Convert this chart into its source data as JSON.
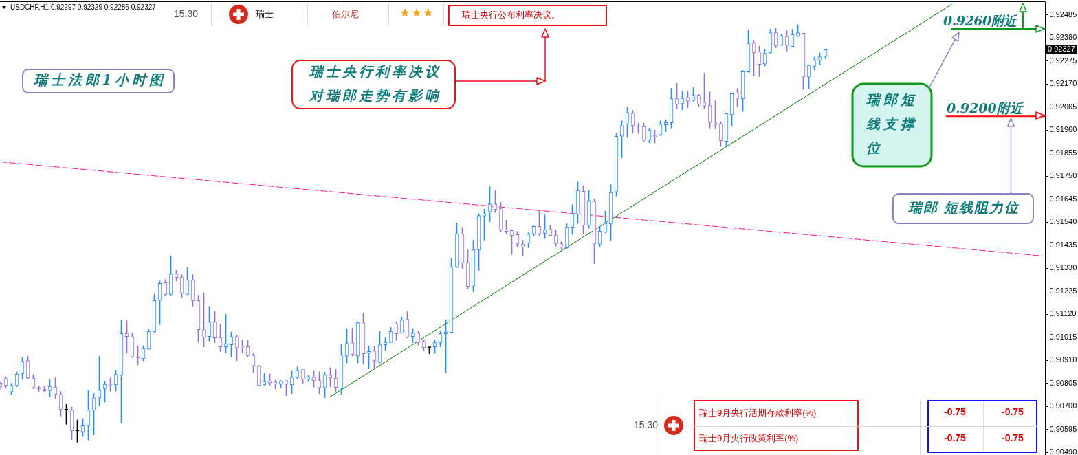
{
  "chart_data": {
    "type": "candlestick",
    "title": "USDCHF,H1 0.92297 0.92329 0.92286 0.92327",
    "categories": [
      null,
      null,
      null,
      null,
      null,
      null,
      null,
      null,
      null,
      null,
      null,
      null,
      null,
      null,
      null,
      null,
      null,
      null,
      null,
      null,
      null,
      null,
      null,
      null,
      null,
      null,
      null,
      null,
      null,
      null,
      null,
      null,
      null,
      null,
      null,
      null,
      null,
      null,
      null,
      null,
      null,
      null,
      null,
      null,
      null,
      null,
      null,
      null,
      null,
      null,
      null,
      null,
      null,
      null,
      null,
      null,
      null,
      null,
      null,
      null,
      null,
      null,
      null,
      null,
      null,
      null,
      null,
      null,
      null,
      null,
      null,
      null,
      null,
      null,
      null,
      null,
      null,
      null,
      null,
      null,
      null,
      null,
      null,
      null,
      null,
      null,
      null,
      null,
      null,
      null,
      null,
      null,
      null,
      null,
      null,
      null,
      null,
      null,
      null,
      null,
      null,
      null,
      null,
      null,
      null,
      null,
      null,
      null,
      null,
      null,
      null,
      null,
      null,
      null,
      null,
      null,
      null,
      null,
      null,
      null,
      null,
      null,
      null,
      null,
      null,
      null,
      null,
      null,
      null,
      null,
      null,
      null,
      null,
      null,
      null,
      null,
      null,
      null,
      null,
      null,
      null,
      null,
      null,
      null,
      null,
      null,
      null,
      null,
      null,
      null,
      null,
      null,
      null,
      null,
      null,
      null,
      null,
      null,
      null,
      null,
      null,
      null,
      null,
      null,
      null,
      null,
      null,
      null,
      null,
      null,
      null,
      null,
      null,
      null,
      null,
      null,
      null,
      null,
      null,
      null,
      null,
      null,
      null,
      null,
      null,
      null,
      null,
      null,
      null,
      null,
      null
    ],
    "ohlc": [
      [
        0.90806,
        0.90817,
        0.90775,
        0.90789
      ],
      [
        0.90827,
        0.90835,
        0.90785,
        0.90796
      ],
      [
        0.90766,
        0.90805,
        0.90754,
        0.90795
      ],
      [
        0.90795,
        0.90857,
        0.9079,
        0.90848
      ],
      [
        0.9085,
        0.90922,
        0.90823,
        0.90905
      ],
      [
        0.90908,
        0.90929,
        0.90826,
        0.90829
      ],
      [
        0.90829,
        0.90845,
        0.90781,
        0.90785
      ],
      [
        0.90786,
        0.90793,
        0.90768,
        0.90781
      ],
      [
        0.90779,
        0.90791,
        0.90767,
        0.9077
      ],
      [
        0.90771,
        0.90821,
        0.90743,
        0.90791
      ],
      [
        0.90788,
        0.90831,
        0.90735,
        0.90754
      ],
      [
        0.90754,
        0.90768,
        0.90655,
        0.90685
      ],
      [
        0.90685,
        0.90709,
        0.90618,
        0.90685
      ],
      [
        0.90683,
        0.90697,
        0.90548,
        0.90588
      ],
      [
        0.90588,
        0.90638,
        0.90536,
        0.90588
      ],
      [
        0.90583,
        0.90644,
        0.90562,
        0.90612
      ],
      [
        0.90612,
        0.90772,
        0.90546,
        0.90683
      ],
      [
        0.90683,
        0.90758,
        0.9057,
        0.90739
      ],
      [
        0.90738,
        0.90929,
        0.90703,
        0.90773
      ],
      [
        0.90781,
        0.90814,
        0.90719,
        0.90801
      ],
      [
        0.908,
        0.90829,
        0.90768,
        0.90797
      ],
      [
        0.90798,
        0.90864,
        0.90769,
        0.90845
      ],
      [
        0.90842,
        0.91094,
        0.90625,
        0.91032
      ],
      [
        0.91032,
        0.91091,
        0.90944,
        0.91018
      ],
      [
        0.91018,
        0.91036,
        0.90922,
        0.90926
      ],
      [
        0.90927,
        0.90976,
        0.90889,
        0.9092
      ],
      [
        0.90917,
        0.90976,
        0.90908,
        0.90964
      ],
      [
        0.90961,
        0.91051,
        0.9096,
        0.91041
      ],
      [
        0.91039,
        0.91212,
        0.91037,
        0.91182
      ],
      [
        0.91183,
        0.91272,
        0.91072,
        0.91261
      ],
      [
        0.91264,
        0.91279,
        0.91204,
        0.9121
      ],
      [
        0.9121,
        0.91387,
        0.91207,
        0.91304
      ],
      [
        0.91304,
        0.9132,
        0.91272,
        0.91288
      ],
      [
        0.91288,
        0.91301,
        0.91196,
        0.91215
      ],
      [
        0.9121,
        0.91334,
        0.91209,
        0.91276
      ],
      [
        0.91276,
        0.91301,
        0.91157,
        0.91182
      ],
      [
        0.91182,
        0.91207,
        0.90992,
        0.9105
      ],
      [
        0.9105,
        0.91217,
        0.90971,
        0.91015
      ],
      [
        0.91018,
        0.91156,
        0.90997,
        0.91084
      ],
      [
        0.91084,
        0.91133,
        0.9099,
        0.91012
      ],
      [
        0.91012,
        0.91076,
        0.9095,
        0.90971
      ],
      [
        0.90971,
        0.9112,
        0.90944,
        0.90985
      ],
      [
        0.90981,
        0.91039,
        0.90924,
        0.91018
      ],
      [
        0.91018,
        0.91024,
        0.90908,
        0.90966
      ],
      [
        0.90973,
        0.91002,
        0.90944,
        0.9097
      ],
      [
        0.90972,
        0.91002,
        0.90924,
        0.90932
      ],
      [
        0.90933,
        0.90944,
        0.90854,
        0.90884
      ],
      [
        0.90884,
        0.90887,
        0.90793,
        0.90795
      ],
      [
        0.90798,
        0.9085,
        0.90796,
        0.90814
      ],
      [
        0.90816,
        0.90848,
        0.90796,
        0.90807
      ],
      [
        0.90811,
        0.90819,
        0.90779,
        0.908
      ],
      [
        0.90801,
        0.90819,
        0.90784,
        0.90816
      ],
      [
        0.90817,
        0.90819,
        0.90748,
        0.908
      ],
      [
        0.90798,
        0.90861,
        0.90758,
        0.90833
      ],
      [
        0.90832,
        0.9088,
        0.90827,
        0.90864
      ],
      [
        0.90867,
        0.90869,
        0.90804,
        0.90823
      ],
      [
        0.90823,
        0.90843,
        0.90813,
        0.90834
      ],
      [
        0.90833,
        0.90861,
        0.90787,
        0.90817
      ],
      [
        0.90817,
        0.90858,
        0.90758,
        0.90785
      ],
      [
        0.90785,
        0.90855,
        0.90739,
        0.90843
      ],
      [
        0.90843,
        0.90876,
        0.90789,
        0.90829
      ],
      [
        0.90829,
        0.90869,
        0.90766,
        0.90787
      ],
      [
        0.90783,
        0.90984,
        0.90755,
        0.90934
      ],
      [
        0.90929,
        0.91053,
        0.90898,
        0.90987
      ],
      [
        0.9099,
        0.91057,
        0.90929,
        0.90936
      ],
      [
        0.90929,
        0.91086,
        0.90898,
        0.91081
      ],
      [
        0.91081,
        0.91123,
        0.90892,
        0.9094
      ],
      [
        0.90943,
        0.90976,
        0.90871,
        0.9095
      ],
      [
        0.90953,
        0.90973,
        0.90877,
        0.90908
      ],
      [
        0.90901,
        0.91042,
        0.90898,
        0.90981
      ],
      [
        0.90981,
        0.91013,
        0.90955,
        0.90992
      ],
      [
        0.90992,
        0.9106,
        0.9099,
        0.91041
      ],
      [
        0.91076,
        0.91086,
        0.91002,
        0.91031
      ],
      [
        0.91034,
        0.91107,
        0.91032,
        0.91094
      ],
      [
        0.91097,
        0.91133,
        0.91011,
        0.91016
      ],
      [
        0.91018,
        0.91055,
        0.9099,
        0.91034
      ],
      [
        0.91034,
        0.91044,
        0.90979,
        0.90992
      ],
      [
        0.90996,
        0.91002,
        0.90955,
        0.90968
      ],
      [
        0.90968,
        0.90971,
        0.9094,
        0.90968
      ],
      [
        0.90971,
        0.91002,
        0.90942,
        0.9099
      ],
      [
        0.90989,
        0.91044,
        0.90971,
        0.91031
      ],
      [
        0.91031,
        0.91095,
        0.90853,
        0.91039
      ],
      [
        0.91037,
        0.91374,
        0.91035,
        0.91336
      ],
      [
        0.91336,
        0.91537,
        0.91333,
        0.91487
      ],
      [
        0.91487,
        0.91516,
        0.91329,
        0.91353
      ],
      [
        0.91356,
        0.91413,
        0.91236,
        0.91247
      ],
      [
        0.91249,
        0.91458,
        0.91222,
        0.91414
      ],
      [
        0.91414,
        0.91579,
        0.91319,
        0.9157
      ],
      [
        0.91568,
        0.916,
        0.91458,
        0.91579
      ],
      [
        0.91587,
        0.91702,
        0.91542,
        0.91623
      ],
      [
        0.91623,
        0.91684,
        0.91584,
        0.91598
      ],
      [
        0.91602,
        0.91631,
        0.91495,
        0.91505
      ],
      [
        0.91505,
        0.9155,
        0.91489,
        0.91498
      ],
      [
        0.91502,
        0.91505,
        0.91393,
        0.91479
      ],
      [
        0.91483,
        0.91498,
        0.91428,
        0.91441
      ],
      [
        0.91439,
        0.91458,
        0.91386,
        0.91426
      ],
      [
        0.91445,
        0.91492,
        0.91423,
        0.91486
      ],
      [
        0.91486,
        0.91523,
        0.91477,
        0.91521
      ],
      [
        0.91521,
        0.91591,
        0.91477,
        0.91486
      ],
      [
        0.91489,
        0.91573,
        0.91465,
        0.91505
      ],
      [
        0.91508,
        0.91526,
        0.91477,
        0.91479
      ],
      [
        0.91481,
        0.91505,
        0.9143,
        0.91442
      ],
      [
        0.91442,
        0.91452,
        0.91418,
        0.91426
      ],
      [
        0.91423,
        0.91533,
        0.91418,
        0.91517
      ],
      [
        0.91517,
        0.9162,
        0.91484,
        0.91577
      ],
      [
        0.91576,
        0.91723,
        0.91534,
        0.91685
      ],
      [
        0.91681,
        0.91707,
        0.91486,
        0.91526
      ],
      [
        0.91526,
        0.91685,
        0.91512,
        0.91636
      ],
      [
        0.91635,
        0.91646,
        0.91351,
        0.9144
      ],
      [
        0.9144,
        0.91521,
        0.91428,
        0.915
      ],
      [
        0.91494,
        0.91592,
        0.91491,
        0.91534
      ],
      [
        0.91533,
        0.91712,
        0.91456,
        0.91675
      ],
      [
        0.91678,
        0.91945,
        0.91659,
        0.91932
      ],
      [
        0.91932,
        0.92003,
        0.91833,
        0.9198
      ],
      [
        0.91987,
        0.92066,
        0.91926,
        0.92039
      ],
      [
        0.92037,
        0.9205,
        0.91947,
        0.9198
      ],
      [
        0.9198,
        0.91992,
        0.91945,
        0.91976
      ],
      [
        0.91976,
        0.91992,
        0.9191,
        0.91914
      ],
      [
        0.91914,
        0.91969,
        0.91901,
        0.91961
      ],
      [
        0.91934,
        0.91961,
        0.91901,
        0.9193
      ],
      [
        0.91938,
        0.92003,
        0.91935,
        0.91987
      ],
      [
        0.91984,
        0.92008,
        0.91953,
        0.91994
      ],
      [
        0.91993,
        0.9215,
        0.91969,
        0.92103
      ],
      [
        0.92103,
        0.92173,
        0.92058,
        0.92077
      ],
      [
        0.9208,
        0.92138,
        0.92053,
        0.92106
      ],
      [
        0.92108,
        0.92138,
        0.92063,
        0.92092
      ],
      [
        0.92095,
        0.92154,
        0.92092,
        0.92119
      ],
      [
        0.92119,
        0.92123,
        0.92068,
        0.92077
      ],
      [
        0.92087,
        0.9222,
        0.92059,
        0.9207
      ],
      [
        0.92072,
        0.92134,
        0.91969,
        0.91995
      ],
      [
        0.91993,
        0.92095,
        0.91967,
        0.91982
      ],
      [
        0.91988,
        0.91998,
        0.91885,
        0.91912
      ],
      [
        0.91909,
        0.92037,
        0.91886,
        0.92035
      ],
      [
        0.9203,
        0.92129,
        0.91977,
        0.92126
      ],
      [
        0.92129,
        0.9215,
        0.92066,
        0.92106
      ],
      [
        0.92103,
        0.92232,
        0.92045,
        0.92226
      ],
      [
        0.92225,
        0.92417,
        0.92223,
        0.92354
      ],
      [
        0.92357,
        0.9237,
        0.92207,
        0.92312
      ],
      [
        0.92317,
        0.92344,
        0.92204,
        0.9226
      ],
      [
        0.92262,
        0.92328,
        0.92252,
        0.9231
      ],
      [
        0.92312,
        0.9242,
        0.92309,
        0.92404
      ],
      [
        0.92404,
        0.92424,
        0.92335,
        0.92344
      ],
      [
        0.92347,
        0.92396,
        0.92345,
        0.92391
      ],
      [
        0.92388,
        0.92414,
        0.9232,
        0.92346
      ],
      [
        0.92341,
        0.9242,
        0.92339,
        0.92396
      ],
      [
        0.92388,
        0.92441,
        0.92386,
        0.92404
      ],
      [
        0.92402,
        0.92403,
        0.92145,
        0.92202
      ],
      [
        0.92202,
        0.92257,
        0.92147,
        0.92255
      ],
      [
        0.92251,
        0.92294,
        0.92234,
        0.92279
      ],
      [
        0.92279,
        0.92312,
        0.92257,
        0.92294
      ],
      [
        0.92297,
        0.92329,
        0.92286,
        0.92327
      ],
      null,
      null,
      null,
      null,
      null,
      null,
      null,
      null,
      null,
      null,
      null,
      null,
      null,
      null,
      null,
      null,
      null,
      null,
      null,
      null,
      null,
      null,
      null,
      null,
      null,
      null,
      null,
      null,
      null,
      null,
      null,
      null,
      null,
      null,
      null,
      null,
      null,
      null,
      null,
      null
    ],
    "colors": [
      "#9370db",
      "#9370db",
      "#1e90ff",
      "#1e90ff",
      "#1e90ff",
      "#9370db",
      "#9370db",
      "#9370db",
      "#9370db",
      "#1e90ff",
      "#9370db",
      "#9370db",
      "#000000",
      "#9370db",
      "#000000",
      "#1e90ff",
      "#1e90ff",
      "#1e90ff",
      "#1e90ff",
      "#1e90ff",
      "#9370db",
      "#1e90ff",
      "#1e90ff",
      "#9370db",
      "#9370db",
      "#9370db",
      "#1e90ff",
      "#1e90ff",
      "#1e90ff",
      "#1e90ff",
      "#9370db",
      "#1e90ff",
      "#9370db",
      "#9370db",
      "#1e90ff",
      "#9370db",
      "#9370db",
      "#9370db",
      "#1e90ff",
      "#9370db",
      "#9370db",
      "#1e90ff",
      "#1e90ff",
      "#9370db",
      "#9370db",
      "#9370db",
      "#9370db",
      "#9370db",
      "#1e90ff",
      "#9370db",
      "#9370db",
      "#1e90ff",
      "#9370db",
      "#1e90ff",
      "#1e90ff",
      "#9370db",
      "#1e90ff",
      "#9370db",
      "#9370db",
      "#1e90ff",
      "#9370db",
      "#9370db",
      "#1e90ff",
      "#1e90ff",
      "#9370db",
      "#1e90ff",
      "#9370db",
      "#1e90ff",
      "#9370db",
      "#1e90ff",
      "#1e90ff",
      "#1e90ff",
      "#9370db",
      "#1e90ff",
      "#9370db",
      "#1e90ff",
      "#9370db",
      "#9370db",
      "#000000",
      "#1e90ff",
      "#1e90ff",
      "#1e90ff",
      "#1e90ff",
      "#1e90ff",
      "#9370db",
      "#9370db",
      "#1e90ff",
      "#1e90ff",
      "#1e90ff",
      "#1e90ff",
      "#9370db",
      "#9370db",
      "#9370db",
      "#9370db",
      "#9370db",
      "#9370db",
      "#1e90ff",
      "#1e90ff",
      "#9370db",
      "#1e90ff",
      "#9370db",
      "#9370db",
      "#9370db",
      "#1e90ff",
      "#1e90ff",
      "#1e90ff",
      "#9370db",
      "#1e90ff",
      "#9370db",
      "#1e90ff",
      "#1e90ff",
      "#1e90ff",
      "#1e90ff",
      "#1e90ff",
      "#1e90ff",
      "#9370db",
      "#9370db",
      "#9370db",
      "#1e90ff",
      "#9370db",
      "#1e90ff",
      "#1e90ff",
      "#1e90ff",
      "#9370db",
      "#1e90ff",
      "#9370db",
      "#1e90ff",
      "#9370db",
      "#9370db",
      "#9370db",
      "#9370db",
      "#9370db",
      "#1e90ff",
      "#1e90ff",
      "#9370db",
      "#1e90ff",
      "#1e90ff",
      "#9370db",
      "#9370db",
      "#1e90ff",
      "#1e90ff",
      "#9370db",
      "#1e90ff",
      "#9370db",
      "#1e90ff",
      "#1e90ff",
      "#9370db",
      "#1e90ff",
      "#1e90ff",
      "#1e90ff",
      "#1e90ff",
      null,
      null,
      null,
      null,
      null,
      null,
      null,
      null,
      null,
      null,
      null,
      null,
      null,
      null,
      null,
      null,
      null,
      null,
      null,
      null,
      null,
      null,
      null,
      null,
      null,
      null,
      null,
      null,
      null,
      null,
      null,
      null,
      null,
      null,
      null,
      null,
      null,
      null,
      null,
      null
    ],
    "series": [
      {
        "type": "line",
        "color": "#008000",
        "values": [
          null,
          null,
          null,
          null,
          null,
          null,
          null,
          null,
          null,
          null,
          null,
          null,
          null,
          null,
          null,
          null,
          null,
          null,
          null,
          null,
          null,
          null,
          null,
          null,
          null,
          null,
          null,
          null,
          null,
          null,
          null,
          null,
          null,
          null,
          null,
          null,
          null,
          null,
          null,
          null,
          null,
          null,
          null,
          null,
          null,
          null,
          null,
          null,
          null,
          null,
          null,
          null,
          null,
          null,
          null,
          null,
          null,
          null,
          null,
          null,
          0.90744,
          null,
          null,
          null,
          null,
          null,
          null,
          null,
          null,
          null,
          null,
          null,
          null,
          null,
          null,
          null,
          null,
          null,
          null,
          null,
          null,
          null,
          null,
          null,
          null,
          null,
          null,
          null,
          null,
          null,
          null,
          null,
          null,
          null,
          null,
          null,
          null,
          null,
          null,
          null,
          null,
          null,
          null,
          null,
          null,
          null,
          null,
          null,
          null,
          null,
          null,
          null,
          null,
          null,
          null,
          null,
          null,
          null,
          null,
          null,
          null,
          null,
          null,
          null,
          null,
          null,
          null,
          null,
          null,
          null,
          null,
          null,
          null,
          null,
          null,
          null,
          null,
          null,
          null,
          null,
          null,
          null,
          null,
          null,
          null,
          null,
          null,
          null,
          null,
          null,
          null,
          null,
          null,
          null,
          null,
          null,
          null,
          null,
          null,
          null,
          null,
          null,
          null,
          null,
          null,
          null,
          null,
          null,
          null,
          null,
          null,
          null,
          null,
          0.92534,
          null,
          null,
          null,
          null,
          null,
          null,
          null,
          null,
          null,
          null,
          null,
          null,
          null,
          null,
          null,
          null,
          null
        ]
      },
      {
        "type": "line",
        "color": "#ff1493",
        "line_style": "dashed",
        "values": [
          0.91815,
          null,
          null,
          null,
          null,
          null,
          null,
          null,
          null,
          null,
          null,
          null,
          null,
          null,
          null,
          null,
          null,
          null,
          null,
          null,
          null,
          null,
          null,
          null,
          null,
          null,
          null,
          null,
          null,
          null,
          null,
          null,
          null,
          null,
          null,
          null,
          null,
          null,
          null,
          null,
          null,
          null,
          null,
          null,
          null,
          null,
          null,
          null,
          null,
          null,
          null,
          null,
          null,
          null,
          null,
          null,
          null,
          null,
          null,
          null,
          null,
          null,
          null,
          null,
          null,
          null,
          null,
          null,
          null,
          null,
          null,
          null,
          null,
          null,
          null,
          null,
          null,
          null,
          null,
          null,
          null,
          null,
          null,
          null,
          null,
          null,
          null,
          null,
          null,
          null,
          null,
          null,
          null,
          null,
          null,
          null,
          null,
          null,
          null,
          null,
          null,
          null,
          null,
          null,
          null,
          null,
          null,
          null,
          null,
          null,
          null,
          null,
          null,
          null,
          null,
          null,
          null,
          null,
          null,
          null,
          null,
          null,
          null,
          null,
          null,
          null,
          null,
          null,
          null,
          null,
          null,
          null,
          null,
          null,
          null,
          null,
          null,
          null,
          null,
          null,
          null,
          null,
          null,
          null,
          null,
          null,
          null,
          null,
          null,
          null,
          null,
          null,
          null,
          null,
          null,
          null,
          null,
          null,
          null,
          null,
          null,
          null,
          null,
          null,
          null,
          null,
          null,
          null,
          null,
          null,
          null,
          null,
          null,
          null,
          null,
          null,
          null,
          null,
          null,
          null,
          null,
          null,
          null,
          null,
          null,
          null,
          null,
          null,
          null,
          null,
          0.91385
        ]
      },
      {
        "type": "line",
        "color": "#10991a",
        "values": [
          null,
          null,
          null,
          null,
          null,
          null,
          null,
          null,
          null,
          null,
          null,
          null,
          null,
          null,
          null,
          null,
          null,
          null,
          null,
          null,
          null,
          null,
          null,
          null,
          null,
          null,
          null,
          null,
          null,
          null,
          null,
          null,
          null,
          null,
          null,
          null,
          null,
          null,
          null,
          null,
          null,
          null,
          null,
          null,
          null,
          null,
          null,
          null,
          null,
          null,
          null,
          null,
          null,
          null,
          null,
          null,
          null,
          null,
          null,
          null,
          null,
          null,
          null,
          null,
          null,
          null,
          null,
          null,
          null,
          null,
          null,
          null,
          null,
          null,
          null,
          null,
          null,
          null,
          null,
          null,
          null,
          null,
          null,
          null,
          null,
          null,
          null,
          null,
          null,
          null,
          null,
          null,
          null,
          null,
          null,
          null,
          null,
          null,
          null,
          null,
          null,
          null,
          null,
          null,
          null,
          null,
          null,
          null,
          null,
          null,
          null,
          null,
          null,
          null,
          null,
          null,
          null,
          null,
          null,
          null,
          null,
          null,
          null,
          null,
          null,
          null,
          null,
          null,
          null,
          null,
          null,
          null,
          null,
          null,
          null,
          null,
          null,
          null,
          null,
          null,
          null,
          null,
          null,
          null,
          null,
          null,
          null,
          null,
          null,
          null,
          null,
          null,
          null,
          null,
          null,
          null,
          null,
          null,
          null,
          null,
          null,
          null,
          null,
          null,
          null,
          null,
          null,
          null,
          null,
          null,
          null,
          null,
          null,
          0.92422,
          null,
          null,
          null,
          null,
          null,
          null,
          null,
          null,
          null,
          null,
          null,
          null,
          null,
          null,
          null,
          null,
          0.92422
        ]
      },
      {
        "type": "line",
        "color": "#ff0000",
        "values": [
          null,
          null,
          null,
          null,
          null,
          null,
          null,
          null,
          null,
          null,
          null,
          null,
          null,
          null,
          null,
          null,
          null,
          null,
          null,
          null,
          null,
          null,
          null,
          null,
          null,
          null,
          null,
          null,
          null,
          null,
          null,
          null,
          null,
          null,
          null,
          null,
          null,
          null,
          null,
          null,
          null,
          null,
          null,
          null,
          null,
          null,
          null,
          null,
          null,
          null,
          null,
          null,
          null,
          null,
          null,
          null,
          null,
          null,
          null,
          null,
          null,
          null,
          null,
          null,
          null,
          null,
          null,
          null,
          null,
          null,
          null,
          null,
          null,
          null,
          null,
          null,
          null,
          null,
          null,
          null,
          null,
          null,
          null,
          null,
          null,
          null,
          null,
          null,
          null,
          null,
          null,
          null,
          null,
          null,
          null,
          null,
          null,
          null,
          null,
          null,
          null,
          null,
          null,
          null,
          null,
          null,
          null,
          null,
          null,
          null,
          null,
          null,
          null,
          null,
          null,
          null,
          null,
          null,
          null,
          null,
          null,
          null,
          null,
          null,
          null,
          null,
          null,
          null,
          null,
          null,
          null,
          null,
          null,
          null,
          null,
          null,
          null,
          null,
          null,
          null,
          null,
          null,
          null,
          null,
          null,
          null,
          null,
          null,
          null,
          null,
          null,
          null,
          null,
          null,
          null,
          null,
          null,
          null,
          null,
          null,
          null,
          null,
          null,
          null,
          null,
          null,
          null,
          null,
          null,
          null,
          null,
          null,
          0.92023,
          null,
          null,
          null,
          null,
          null,
          null,
          null,
          null,
          null,
          null,
          null,
          null,
          null,
          null,
          null,
          null,
          null,
          0.92023
        ]
      }
    ],
    "ylim": [
      0.90478,
      0.92544
    ],
    "yticks": [
      0.92485,
      {
        "value": 0.9238,
        "label": "0.92380"
      },
      0.92275,
      {
        "value": 0.9217,
        "label": "0.92170"
      },
      0.92065,
      {
        "value": 0.9196,
        "label": "0.91960"
      },
      0.91855,
      {
        "value": 0.9175,
        "label": "0.91750"
      },
      0.91645,
      {
        "value": 0.9154,
        "label": "0.91540"
      },
      0.91435,
      {
        "value": 0.9133,
        "label": "0.91330"
      },
      0.91225,
      {
        "value": 0.9112,
        "label": "0.91120"
      },
      0.91015,
      {
        "value": 0.9091,
        "label": "0.90910"
      },
      0.90805,
      {
        "value": 0.907,
        "label": "0.90700"
      },
      0.90595,
      {
        "value": 0.9049,
        "label": "0.90490"
      }
    ],
    "tick_labels": "y",
    "annotations": [
      "瑞士法郎1小时图",
      "瑞士央行利率决议对瑞郎走势有影响",
      "瑞郎短线支撑位",
      "瑞郎 短线阻力位",
      {
        "text": "0.9260附近",
        "y": 0.92422
      },
      {
        "text": "0.9200附近",
        "y": 0.92023
      },
      "0.92327",
      "15:30",
      "瑞士",
      "伯尔尼",
      "瑞士央行公布利率决议。",
      "15:30",
      "瑞士9月央行活期存款利率(%)",
      "瑞士9月央行政策利率(%)",
      "-0.75",
      "-0.75",
      "-0.75",
      "-0.75"
    ]
  }
}
